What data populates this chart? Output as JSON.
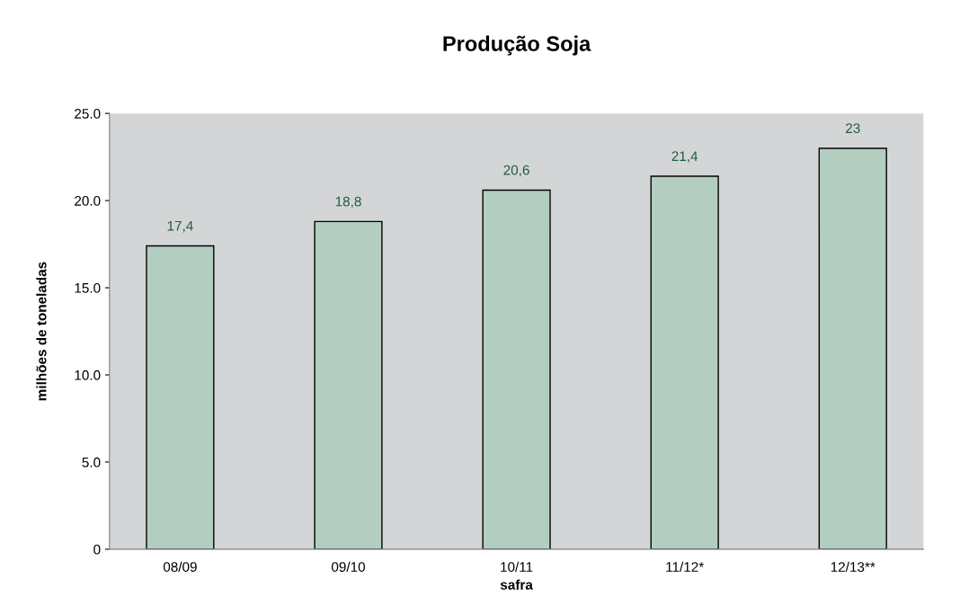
{
  "chart_data": {
    "type": "bar",
    "title": "Produção Soja",
    "xlabel": "safra",
    "ylabel": "milhões de toneladas",
    "categories": [
      "08/09",
      "09/10",
      "10/11",
      "11/12*",
      "12/13**"
    ],
    "values": [
      17.4,
      18.8,
      20.6,
      21.4,
      23
    ],
    "value_labels": [
      "17,4",
      "18,8",
      "20,6",
      "21,4",
      "23"
    ],
    "color": "#b3cec0",
    "ylim": [
      0,
      25
    ],
    "yticks": [
      0,
      {
        "value": 5,
        "label": "5.0"
      },
      {
        "value": 10,
        "label": "10.0"
      },
      {
        "value": 15,
        "label": "15.0"
      },
      {
        "value": 20,
        "label": "20.0"
      },
      {
        "value": 25,
        "label": "25.0"
      }
    ],
    "grid": false,
    "legend": false
  }
}
